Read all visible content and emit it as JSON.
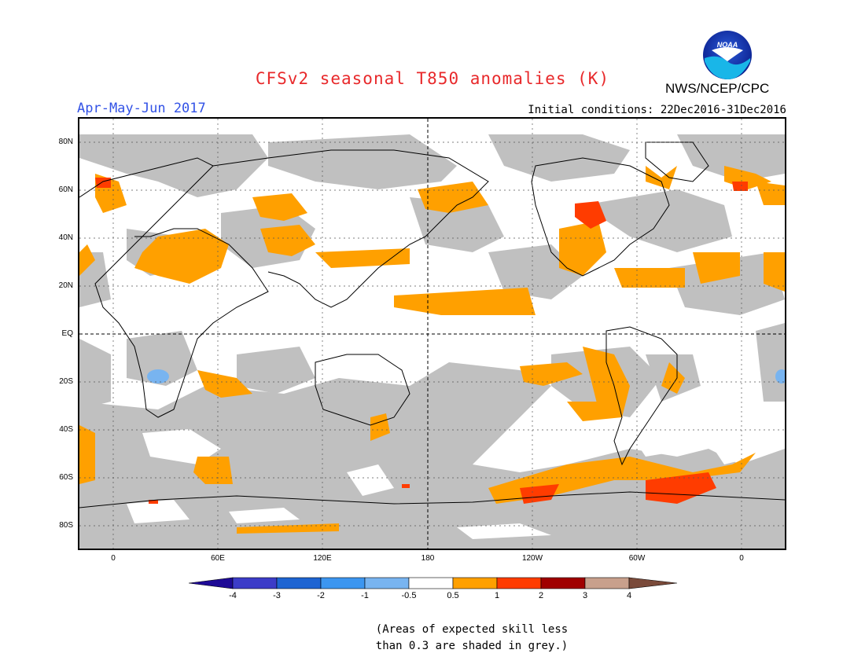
{
  "header": {
    "title": "CFSv2 seasonal T850 anomalies (K)",
    "season": "Apr-May-Jun 2017",
    "initial_conditions": "Initial conditions: 22Dec2016-31Dec2016",
    "agency": "NWS/NCEP/CPC",
    "logo_text": "NOAA"
  },
  "map": {
    "lat_labels": [
      "80N",
      "60N",
      "40N",
      "20N",
      "EQ",
      "20S",
      "40S",
      "60S",
      "80S"
    ],
    "lon_labels": [
      "0",
      "60E",
      "120E",
      "180",
      "120W",
      "60W",
      "0"
    ],
    "low_skill_color": "#c0c0c0"
  },
  "colorbar": {
    "labels": [
      "-4",
      "-3",
      "-2",
      "-1",
      "-0.5",
      "0.5",
      "1",
      "2",
      "3",
      "4"
    ],
    "colors": [
      "#1e0a96",
      "#3c3cc8",
      "#1e64d2",
      "#3c96f0",
      "#78b4f0",
      "#ffffff",
      "#ffa000",
      "#ff3c00",
      "#a00000",
      "#c8a08c",
      "#7a4a3a"
    ]
  },
  "note": {
    "line1": "(Areas of expected skill less",
    "line2": "than 0.3 are shaded in grey.)"
  }
}
